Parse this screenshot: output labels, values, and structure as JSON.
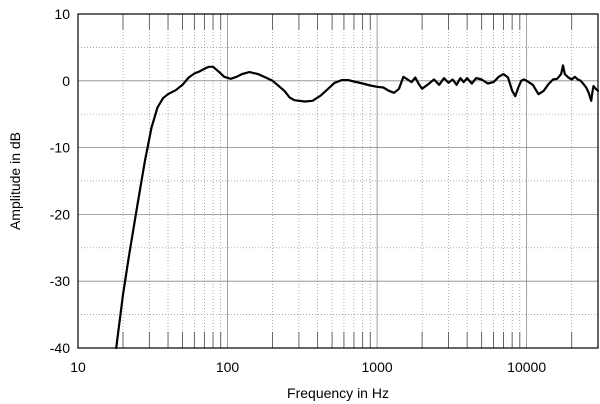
{
  "chart_data": {
    "type": "line",
    "title": "",
    "xlabel": "Frequency in Hz",
    "ylabel": "Amplitude in dB",
    "x_scale": "log",
    "xlim": [
      10,
      30000
    ],
    "ylim": [
      -40,
      10
    ],
    "x_tick_labels": [
      {
        "value": 10,
        "label": "10"
      },
      {
        "value": 100,
        "label": "100"
      },
      {
        "value": 1000,
        "label": "1000"
      },
      {
        "value": 10000,
        "label": "10000"
      }
    ],
    "y_tick_labels": [
      {
        "value": 10,
        "label": "10"
      },
      {
        "value": 0,
        "label": "0"
      },
      {
        "value": -10,
        "label": "-10"
      },
      {
        "value": -20,
        "label": "-20"
      },
      {
        "value": -30,
        "label": "-30"
      },
      {
        "value": -40,
        "label": "-40"
      }
    ],
    "grid": true,
    "series": [
      {
        "color": "#000000",
        "points": [
          [
            18,
            -40
          ],
          [
            20,
            -32
          ],
          [
            22,
            -26
          ],
          [
            25,
            -18.5
          ],
          [
            28,
            -12
          ],
          [
            31,
            -7
          ],
          [
            34,
            -4
          ],
          [
            37,
            -2.6
          ],
          [
            40,
            -2
          ],
          [
            45,
            -1.4
          ],
          [
            50,
            -0.6
          ],
          [
            55,
            0.5
          ],
          [
            60,
            1.1
          ],
          [
            65,
            1.4
          ],
          [
            70,
            1.8
          ],
          [
            75,
            2.1
          ],
          [
            80,
            2.1
          ],
          [
            88,
            1.3
          ],
          [
            95,
            0.6
          ],
          [
            105,
            0.3
          ],
          [
            115,
            0.6
          ],
          [
            125,
            1.0
          ],
          [
            140,
            1.3
          ],
          [
            160,
            1.0
          ],
          [
            180,
            0.5
          ],
          [
            200,
            0
          ],
          [
            220,
            -0.8
          ],
          [
            240,
            -1.5
          ],
          [
            260,
            -2.5
          ],
          [
            280,
            -2.9
          ],
          [
            300,
            -3.0
          ],
          [
            330,
            -3.1
          ],
          [
            370,
            -3.0
          ],
          [
            420,
            -2.2
          ],
          [
            470,
            -1.2
          ],
          [
            520,
            -0.3
          ],
          [
            580,
            0.1
          ],
          [
            640,
            0.1
          ],
          [
            700,
            -0.1
          ],
          [
            800,
            -0.4
          ],
          [
            900,
            -0.7
          ],
          [
            1000,
            -0.9
          ],
          [
            1100,
            -1.0
          ],
          [
            1200,
            -1.5
          ],
          [
            1300,
            -1.8
          ],
          [
            1400,
            -1.2
          ],
          [
            1500,
            0.6
          ],
          [
            1600,
            0.2
          ],
          [
            1700,
            -0.2
          ],
          [
            1800,
            0.5
          ],
          [
            1900,
            -0.5
          ],
          [
            2000,
            -1.2
          ],
          [
            2200,
            -0.5
          ],
          [
            2400,
            0.2
          ],
          [
            2600,
            -0.6
          ],
          [
            2800,
            0.4
          ],
          [
            3000,
            -0.3
          ],
          [
            3200,
            0.2
          ],
          [
            3400,
            -0.6
          ],
          [
            3600,
            0.4
          ],
          [
            3800,
            -0.2
          ],
          [
            4000,
            0.4
          ],
          [
            4300,
            -0.4
          ],
          [
            4600,
            0.4
          ],
          [
            5000,
            0.2
          ],
          [
            5500,
            -0.4
          ],
          [
            6000,
            -0.2
          ],
          [
            6500,
            0.6
          ],
          [
            7000,
            1.0
          ],
          [
            7500,
            0.5
          ],
          [
            8000,
            -1.5
          ],
          [
            8400,
            -2.3
          ],
          [
            8800,
            -1.0
          ],
          [
            9200,
            0
          ],
          [
            9600,
            0.2
          ],
          [
            10000,
            0
          ],
          [
            11000,
            -0.6
          ],
          [
            12000,
            -2.0
          ],
          [
            13000,
            -1.5
          ],
          [
            14000,
            -0.5
          ],
          [
            15000,
            0.2
          ],
          [
            16000,
            0.3
          ],
          [
            17000,
            1.0
          ],
          [
            17500,
            2.3
          ],
          [
            18000,
            1.0
          ],
          [
            19000,
            0.5
          ],
          [
            20000,
            0.2
          ],
          [
            21000,
            0.6
          ],
          [
            22000,
            0.2
          ],
          [
            23000,
            0
          ],
          [
            24000,
            -0.5
          ],
          [
            25000,
            -1
          ],
          [
            26000,
            -1.8
          ],
          [
            27000,
            -3.0
          ],
          [
            27500,
            -1.8
          ],
          [
            28000,
            -0.8
          ],
          [
            29000,
            -1.2
          ],
          [
            30000,
            -1.5
          ]
        ]
      }
    ]
  }
}
